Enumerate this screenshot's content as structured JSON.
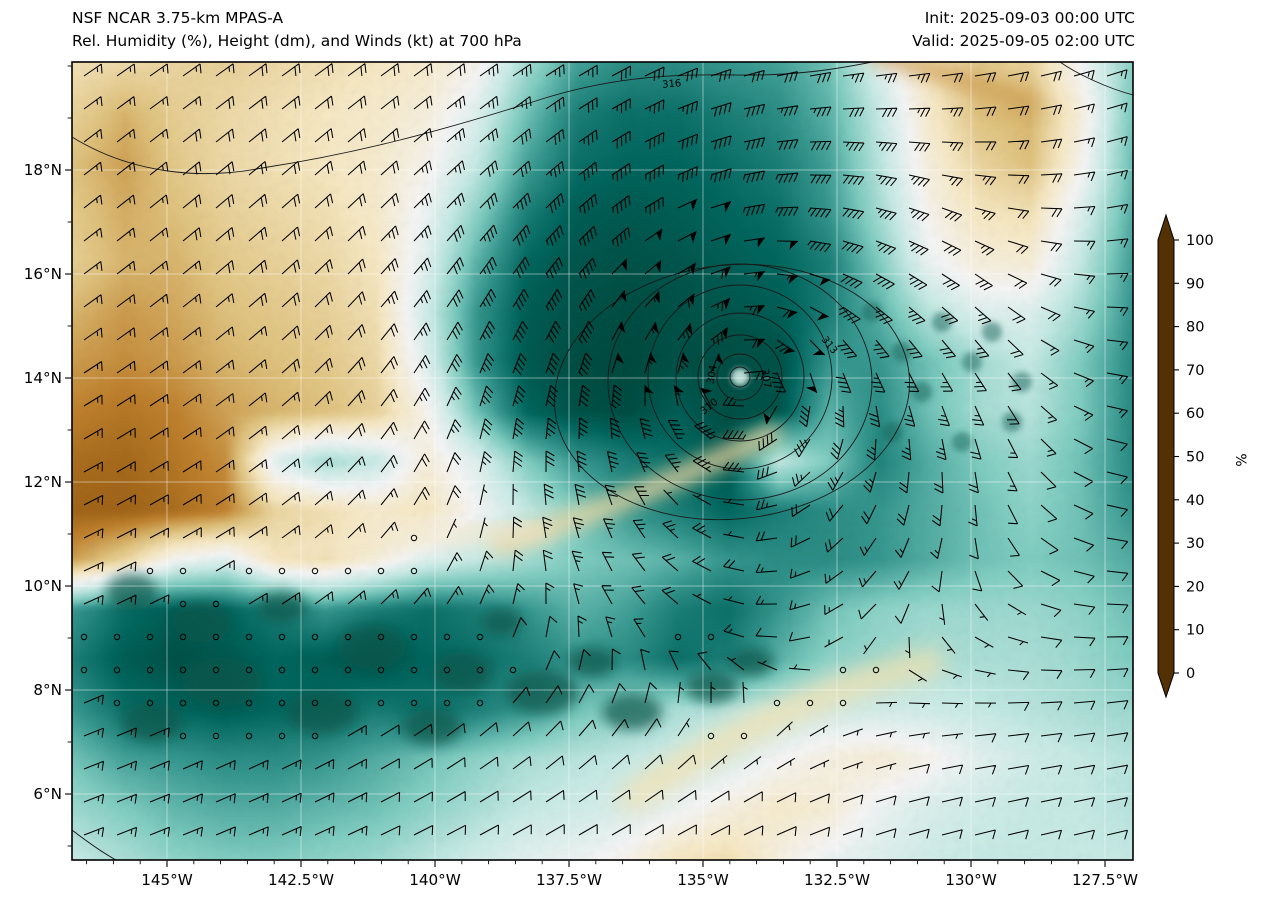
{
  "header": {
    "title_line1": "NSF NCAR 3.75-km MPAS-A",
    "title_line2": "Rel. Humidity (%), Height (dm), and Winds (kt) at 700 hPa",
    "init_label": "Init: 2025-09-03 00:00 UTC",
    "valid_label": "Valid: 2025-09-05 02:00 UTC"
  },
  "axes": {
    "lat_tick_labels": [
      "18°N",
      "16°N",
      "14°N",
      "12°N",
      "10°N",
      "8°N",
      "6°N"
    ],
    "lat_tick_values": [
      18,
      16,
      14,
      12,
      10,
      8,
      6
    ],
    "lon_tick_labels": [
      "145°W",
      "142.5°W",
      "140°W",
      "137.5°W",
      "135°W",
      "132.5°W",
      "130°W",
      "127.5°W"
    ],
    "lon_tick_values": [
      145,
      142.5,
      140,
      137.5,
      135,
      132.5,
      130,
      127.5
    ]
  },
  "colorbar": {
    "label": "%",
    "tick_labels": [
      "0",
      "10",
      "20",
      "30",
      "40",
      "50",
      "60",
      "70",
      "80",
      "90",
      "100"
    ],
    "tick_values": [
      0,
      10,
      20,
      30,
      40,
      50,
      60,
      70,
      80,
      90,
      100
    ],
    "colors_low_to_high": [
      "#543005",
      "#8c510a",
      "#bf812d",
      "#dfc27d",
      "#f6e8c3",
      "#f5f5f5",
      "#c7eae5",
      "#80cdc1",
      "#35978f",
      "#01665e",
      "#003c30"
    ],
    "arrow_bottom_color": "#543005",
    "arrow_top_color": "#003c30"
  },
  "chart_data": {
    "type": "heatmap",
    "title": "NSF NCAR 3.75-km MPAS-A",
    "subtitle": "Rel. Humidity (%), Height (dm), and Winds (kt) at 700 hPa",
    "init_time": "2025-09-03 00:00 UTC",
    "valid_time": "2025-09-05 02:00 UTC",
    "level": "700 hPa",
    "fill_variable": "Relative Humidity",
    "fill_units": "%",
    "fill_range": [
      0,
      100
    ],
    "contour_variable": "Geopotential Height",
    "contour_units": "dm",
    "contour_labels": [
      "304",
      "307",
      "310",
      "313",
      "316"
    ],
    "contour_levels_dm": [
      304,
      307,
      310,
      313,
      316
    ],
    "wind_units": "kt",
    "wind_max_kt": 65,
    "cyclone_center": {
      "lon_deg_w": 134.4,
      "lat_deg_n": 14.1
    },
    "x_axis": {
      "label_format": "longitude °W",
      "range_deg_w": [
        146.8,
        127.0
      ],
      "ticks_deg_w": [
        145,
        142.5,
        140,
        137.5,
        135,
        132.5,
        130,
        127.5
      ]
    },
    "y_axis": {
      "label_format": "latitude °N",
      "range_deg_n": [
        4.7,
        20.1
      ],
      "ticks_deg_n": [
        18,
        16,
        14,
        12,
        10,
        8,
        6
      ]
    },
    "grid_on": true,
    "rh_grid": {
      "note": "relative humidity (%) sampled on a 22x17 grid, row 0 = north edge, col 0 = west edge",
      "cols": 22,
      "rows": 17,
      "values": [
        [
          38,
          36,
          35,
          34,
          36,
          38,
          40,
          42,
          48,
          65,
          78,
          82,
          82,
          80,
          78,
          72,
          55,
          40,
          32,
          34,
          50,
          68
        ],
        [
          34,
          28,
          33,
          36,
          38,
          40,
          42,
          45,
          55,
          72,
          85,
          88,
          88,
          85,
          82,
          75,
          60,
          42,
          30,
          28,
          45,
          70
        ],
        [
          30,
          25,
          32,
          36,
          38,
          40,
          42,
          48,
          60,
          78,
          88,
          90,
          90,
          88,
          85,
          78,
          62,
          45,
          35,
          30,
          48,
          72
        ],
        [
          32,
          27,
          30,
          34,
          36,
          38,
          42,
          52,
          68,
          85,
          92,
          93,
          92,
          90,
          88,
          80,
          65,
          48,
          40,
          38,
          55,
          75
        ],
        [
          33,
          28,
          28,
          32,
          34,
          36,
          40,
          55,
          75,
          90,
          94,
          95,
          94,
          92,
          90,
          85,
          70,
          52,
          45,
          44,
          60,
          78
        ],
        [
          28,
          24,
          26,
          30,
          32,
          34,
          38,
          58,
          80,
          92,
          95,
          96,
          95,
          94,
          92,
          85,
          75,
          62,
          55,
          55,
          65,
          80
        ],
        [
          24,
          22,
          24,
          28,
          30,
          32,
          36,
          55,
          80,
          93,
          96,
          97,
          95,
          97,
          95,
          80,
          80,
          72,
          65,
          60,
          70,
          82
        ],
        [
          20,
          18,
          20,
          25,
          28,
          30,
          34,
          48,
          72,
          90,
          95,
          96,
          92,
          96,
          94,
          75,
          82,
          72,
          65,
          62,
          70,
          82
        ],
        [
          16,
          15,
          18,
          22,
          55,
          65,
          60,
          45,
          55,
          70,
          80,
          85,
          88,
          93,
          60,
          70,
          84,
          76,
          70,
          66,
          72,
          82
        ],
        [
          14,
          14,
          16,
          20,
          35,
          38,
          42,
          40,
          50,
          60,
          70,
          80,
          85,
          90,
          85,
          82,
          80,
          76,
          72,
          68,
          72,
          80
        ],
        [
          25,
          35,
          50,
          55,
          40,
          38,
          45,
          55,
          60,
          65,
          70,
          72,
          75,
          80,
          82,
          82,
          80,
          76,
          72,
          70,
          72,
          76
        ],
        [
          80,
          88,
          92,
          90,
          85,
          80,
          85,
          88,
          85,
          80,
          75,
          78,
          85,
          88,
          80,
          72,
          68,
          66,
          66,
          66,
          68,
          72
        ],
        [
          85,
          92,
          95,
          93,
          90,
          92,
          94,
          90,
          88,
          85,
          80,
          82,
          88,
          85,
          75,
          68,
          66,
          64,
          64,
          64,
          66,
          70
        ],
        [
          80,
          88,
          90,
          92,
          90,
          88,
          86,
          88,
          85,
          80,
          72,
          68,
          64,
          62,
          60,
          58,
          58,
          58,
          60,
          62,
          64,
          66
        ],
        [
          72,
          78,
          80,
          82,
          82,
          80,
          76,
          72,
          68,
          64,
          62,
          60,
          58,
          56,
          50,
          46,
          44,
          48,
          54,
          58,
          60,
          62
        ],
        [
          66,
          70,
          74,
          76,
          76,
          74,
          72,
          68,
          64,
          60,
          58,
          56,
          52,
          46,
          42,
          44,
          52,
          56,
          58,
          60,
          60,
          62
        ],
        [
          60,
          64,
          68,
          70,
          70,
          68,
          66,
          62,
          58,
          54,
          52,
          48,
          40,
          38,
          46,
          52,
          55,
          58,
          60,
          60,
          60,
          60
        ]
      ]
    }
  }
}
